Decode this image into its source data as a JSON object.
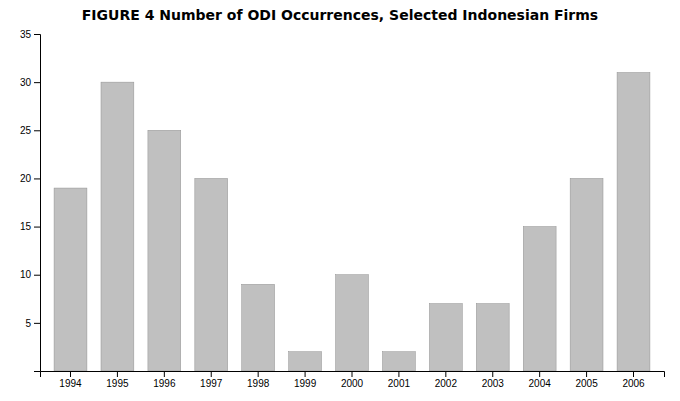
{
  "chart_data": {
    "type": "bar",
    "title": "FIGURE 4 Number of ODI Occurrences, Selected Indonesian Firms",
    "categories": [
      "1994",
      "1995",
      "1996",
      "1997",
      "1998",
      "1999",
      "2000",
      "2001",
      "2002",
      "2003",
      "2004",
      "2005",
      "2006"
    ],
    "values": [
      19,
      30,
      25,
      20,
      9,
      2,
      10,
      2,
      7,
      7,
      15,
      20,
      31
    ],
    "color": "#c0c0c0",
    "ylim": [
      0,
      35
    ],
    "yticks": [
      5,
      10,
      15,
      20,
      25,
      30,
      35
    ],
    "grid": false
  }
}
